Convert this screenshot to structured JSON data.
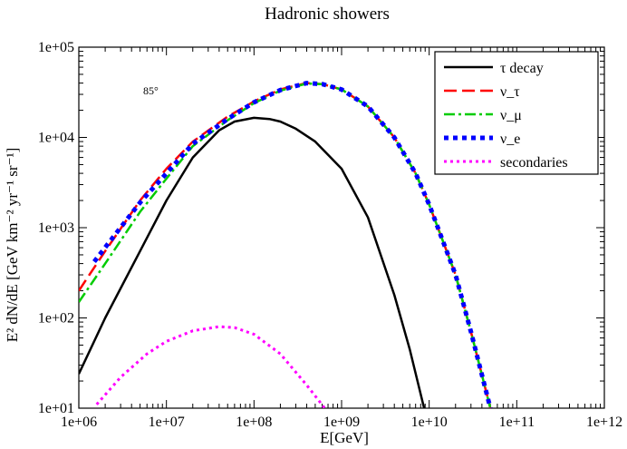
{
  "chart_data": {
    "type": "line",
    "title": "Hadronic showers",
    "xlabel": "E[GeV]",
    "ylabel": "E² dN/dE [GeV km⁻² yr⁻¹ sr⁻¹]",
    "xscale": "log",
    "yscale": "log",
    "xlim": [
      1000000.0,
      1000000000000.0
    ],
    "ylim": [
      10,
      100000
    ],
    "x_ticks": [
      "1e+06",
      "1e+07",
      "1e+08",
      "1e+09",
      "1e+10",
      "1e+11",
      "1e+12"
    ],
    "y_ticks": [
      "1e+01",
      "1e+02",
      "1e+03",
      "1e+04",
      "1e+05"
    ],
    "annotation": "85°",
    "legend_position": "top-right",
    "series": [
      {
        "name": "τ decay",
        "color": "#000000",
        "style": "solid",
        "x": [
          1000000.0,
          2000000.0,
          5000000.0,
          10000000.0,
          20000000.0,
          40000000.0,
          60000000.0,
          100000000.0,
          150000000.0,
          200000000.0,
          300000000.0,
          500000000.0,
          1000000000.0,
          2000000000.0,
          4000000000.0,
          6000000000.0,
          9000000000.0
        ],
        "y": [
          24,
          100,
          550,
          2000,
          6000,
          12000,
          15000,
          16500,
          16000,
          15000,
          12500,
          9000,
          4500,
          1300,
          180,
          45,
          9
        ]
      },
      {
        "name": "ν_τ",
        "color": "#ff0000",
        "style": "dashed",
        "x": [
          1000000.0,
          2000000.0,
          5000000.0,
          10000000.0,
          20000000.0,
          50000000.0,
          100000000.0,
          200000000.0,
          400000000.0,
          600000000.0,
          1000000000.0,
          2000000000.0,
          4000000000.0,
          7000000000.0,
          10000000000.0,
          20000000000.0,
          30000000000.0,
          50000000000.0
        ],
        "y": [
          200,
          550,
          2000,
          4500,
          9000,
          17000,
          25000,
          34000,
          40000,
          39000,
          34000,
          22000,
          10000,
          4000,
          1800,
          300,
          70,
          10
        ]
      },
      {
        "name": "ν_μ",
        "color": "#00cc00",
        "style": "dash-dot",
        "x": [
          1000000.0,
          2000000.0,
          5000000.0,
          10000000.0,
          20000000.0,
          50000000.0,
          100000000.0,
          200000000.0,
          400000000.0,
          600000000.0,
          1000000000.0,
          2000000000.0,
          4000000000.0,
          7000000000.0,
          10000000000.0,
          20000000000.0,
          30000000000.0,
          50000000000.0
        ],
        "y": [
          150,
          400,
          1500,
          3500,
          8000,
          15500,
          24000,
          33000,
          39500,
          39000,
          34000,
          22000,
          10000,
          4000,
          1800,
          300,
          70,
          10
        ]
      },
      {
        "name": "ν_e",
        "color": "#0000ff",
        "style": "dotted-thick",
        "x": [
          1500000.0,
          2500000.0,
          5000000.0,
          10000000.0,
          20000000.0,
          50000000.0,
          100000000.0,
          200000000.0,
          400000000.0,
          600000000.0,
          1000000000.0,
          2000000000.0,
          4000000000.0,
          7000000000.0,
          10000000000.0,
          20000000000.0,
          30000000000.0,
          50000000000.0
        ],
        "y": [
          420,
          800,
          1900,
          4000,
          8500,
          16000,
          24500,
          33500,
          40000,
          39000,
          34000,
          22000,
          10000,
          4000,
          1800,
          300,
          70,
          10
        ]
      },
      {
        "name": "secondaries",
        "color": "#ff00ff",
        "style": "dotted",
        "x": [
          1600000.0,
          3000000.0,
          6000000.0,
          10000000.0,
          20000000.0,
          40000000.0,
          60000000.0,
          100000000.0,
          200000000.0,
          400000000.0,
          700000000.0
        ],
        "y": [
          11,
          22,
          40,
          55,
          72,
          80,
          78,
          66,
          40,
          18,
          9
        ]
      }
    ]
  }
}
